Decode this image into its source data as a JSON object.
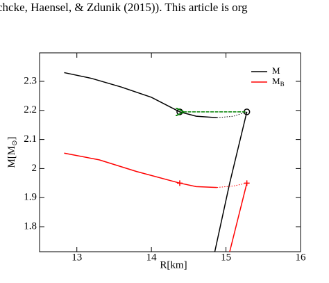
{
  "page_text": "chcke, Haensel, & Zdunik (2015)). This article is org",
  "chart_data": {
    "type": "line",
    "xlabel": "R[km]",
    "ylabel": [
      "M[M",
      "⊙",
      "]"
    ],
    "xlim": [
      12.5,
      16
    ],
    "xticks": [
      13,
      14,
      15,
      16
    ],
    "ylim": [
      1.714,
      2.398
    ],
    "yticks": [
      1.8,
      1.9,
      2,
      2.1,
      2.2,
      2.3
    ],
    "series": [
      {
        "name": "M",
        "color": "#000000",
        "style": "solid",
        "x": [
          12.83,
          13.2,
          13.6,
          14.0,
          14.38,
          14.6,
          14.88
        ],
        "values": [
          2.33,
          2.31,
          2.28,
          2.245,
          2.195,
          2.18,
          2.175
        ]
      },
      {
        "color": "#000000",
        "style": "dotted",
        "x": [
          14.88,
          15.1,
          15.28
        ],
        "values": [
          2.175,
          2.18,
          2.195
        ]
      },
      {
        "color": "#000000",
        "style": "solid",
        "x": [
          15.28,
          15.05,
          14.85
        ],
        "values": [
          2.195,
          1.95,
          1.714
        ]
      },
      {
        "name": "M",
        "name_sub": "B",
        "color": "#ff0000",
        "style": "solid",
        "x": [
          12.83,
          13.3,
          13.8,
          14.38,
          14.6,
          14.88
        ],
        "values": [
          2.053,
          2.03,
          1.99,
          1.95,
          1.938,
          1.935
        ]
      },
      {
        "color": "#ff0000",
        "style": "dotted",
        "x": [
          14.88,
          15.1,
          15.28
        ],
        "values": [
          1.935,
          1.94,
          1.95
        ]
      },
      {
        "color": "#ff0000",
        "style": "solid",
        "x": [
          15.28,
          15.05
        ],
        "values": [
          1.95,
          1.714
        ]
      }
    ],
    "markers": [
      {
        "shape": "circle",
        "color": "#000000",
        "x": 14.38,
        "y": 2.195
      },
      {
        "shape": "circle",
        "color": "#000000",
        "x": 15.28,
        "y": 2.195
      },
      {
        "shape": "plus",
        "color": "#ff0000",
        "x": 14.38,
        "y": 1.95
      },
      {
        "shape": "plus",
        "color": "#ff0000",
        "x": 15.28,
        "y": 1.95
      }
    ],
    "arrow": {
      "color": "#008000",
      "x": [
        15.26,
        14.42
      ],
      "y": [
        2.195,
        2.195
      ]
    }
  }
}
